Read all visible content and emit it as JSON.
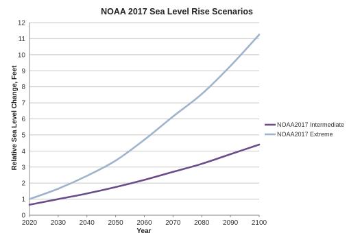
{
  "chart_data": {
    "type": "line",
    "title": "NOAA 2017 Sea Level Rise Scenarios",
    "xlabel": "Year",
    "ylabel": "Relative Sea Level Change, Feet",
    "xlim": [
      2020,
      2100
    ],
    "ylim": [
      0,
      12
    ],
    "x_ticks": [
      "2020",
      "2030",
      "2040",
      "2050",
      "2060",
      "2070",
      "2080",
      "2090",
      "2100"
    ],
    "y_ticks": [
      "0",
      "1",
      "2",
      "3",
      "4",
      "5",
      "6",
      "7",
      "8",
      "9",
      "10",
      "11",
      "12"
    ],
    "grid": "horizontal",
    "legend_position": "right",
    "x": [
      2020,
      2030,
      2040,
      2050,
      2060,
      2070,
      2080,
      2090,
      2100
    ],
    "series": [
      {
        "name": "NOAA2017 Intermediate",
        "color": "#6b4c8a",
        "values": [
          0.65,
          1.0,
          1.35,
          1.75,
          2.2,
          2.7,
          3.2,
          3.8,
          4.4
        ]
      },
      {
        "name": "NOAA2017 Extreme",
        "color": "#9fb3cc",
        "values": [
          1.0,
          1.65,
          2.45,
          3.4,
          4.7,
          6.15,
          7.55,
          9.3,
          11.25
        ]
      }
    ]
  }
}
